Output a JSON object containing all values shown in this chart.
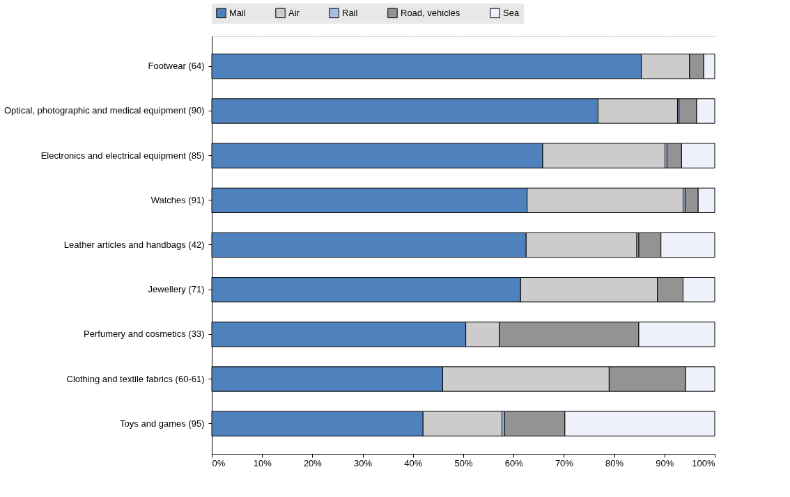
{
  "chart_data": {
    "type": "bar",
    "orientation": "horizontal",
    "stacked": true,
    "categories": [
      "Footwear (64)",
      "Optical, photographic and medical equipment (90)",
      "Electronics and electrical equipment (85)",
      "Watches (91)",
      "Leather articles and handbags (42)",
      "Jewellery (71)",
      "Perfumery and cosmetics (33)",
      "Clothing and textile fabrics (60-61)",
      "Toys and games (95)"
    ],
    "series": [
      {
        "name": "Mail",
        "color": "#4f81bd",
        "values": [
          85.4,
          76.8,
          65.8,
          62.7,
          62.5,
          61.4,
          50.5,
          45.9,
          42.0
        ]
      },
      {
        "name": "Air",
        "color": "#cccccc",
        "values": [
          9.6,
          15.8,
          24.3,
          31.0,
          22.0,
          27.2,
          6.7,
          33.1,
          15.7
        ]
      },
      {
        "name": "Rail",
        "color": "#a9bde6",
        "values": [
          null,
          0.3,
          0.4,
          0.4,
          0.4,
          null,
          null,
          null,
          0.5
        ]
      },
      {
        "name": "Road, vehicles",
        "color": "#939393",
        "values": [
          2.8,
          3.5,
          2.9,
          2.6,
          4.4,
          5.1,
          27.7,
          15.2,
          12.0
        ]
      },
      {
        "name": "Sea",
        "color": "#eef0fa",
        "values": [
          2.2,
          3.6,
          6.6,
          3.3,
          10.7,
          6.3,
          15.1,
          5.8,
          29.8
        ]
      }
    ],
    "xlim": [
      0,
      100
    ],
    "xticks": [
      {
        "value": 0,
        "label": "0%"
      },
      {
        "value": 10,
        "label": "10%"
      },
      {
        "value": 20,
        "label": "20%"
      },
      {
        "value": 30,
        "label": "30%"
      },
      {
        "value": 40,
        "label": "40%"
      },
      {
        "value": 50,
        "label": "50%"
      },
      {
        "value": 60,
        "label": "60%"
      },
      {
        "value": 70,
        "label": "70%"
      },
      {
        "value": 80,
        "label": "80%"
      },
      {
        "value": 90,
        "label": "90%"
      },
      {
        "value": 100,
        "label": "100%"
      }
    ],
    "grid": "x",
    "legend": "top"
  }
}
